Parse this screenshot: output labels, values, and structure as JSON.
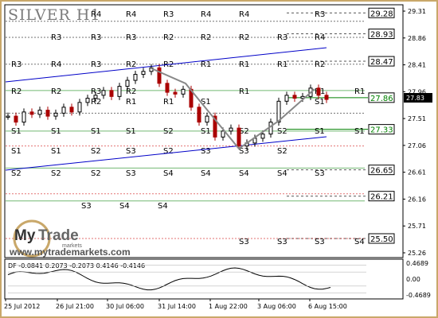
{
  "chart_data": {
    "type": "candlestick",
    "title": "SILVER H1",
    "yrange": [
      25.26,
      29.31
    ],
    "price_ticks": [
      "29.31",
      "28.86",
      "28.41",
      "27.96",
      "27.51",
      "27.06",
      "26.61",
      "26.16",
      "25.71",
      "25.26"
    ],
    "time_labels": [
      "25 Jul 2012",
      "26 Jul 21:00",
      "30 Jul 06:00",
      "31 Jul 14:00",
      "1 Aug 22:00",
      "3 Aug 06:00",
      "6 Aug 15:00"
    ],
    "current_price": "27.83",
    "levels": [
      {
        "label": "29.28",
        "value": 29.28,
        "color": "#000000"
      },
      {
        "label": "28.93",
        "value": 28.93,
        "color": "#000000"
      },
      {
        "label": "28.47",
        "value": 28.47,
        "color": "#000000"
      },
      {
        "label": "27.86",
        "value": 27.86,
        "color": "#008000"
      },
      {
        "label": "27.33",
        "value": 27.33,
        "color": "#008000"
      },
      {
        "label": "26.65",
        "value": 26.65,
        "color": "#000000"
      },
      {
        "label": "26.21",
        "value": 26.21,
        "color": "#000000"
      },
      {
        "label": "25.50",
        "value": 25.5,
        "color": "#000000"
      }
    ],
    "pivot_labels": [
      "R4",
      "R4",
      "R3",
      "R4",
      "R4",
      "R3",
      "R3",
      "R3",
      "R3",
      "R2",
      "R2",
      "R2",
      "R3",
      "R4",
      "R3",
      "R4",
      "R3",
      "R2",
      "R2",
      "R1",
      "R1",
      "R1",
      "R2",
      "R2",
      "R2",
      "R3",
      "R2",
      "R1",
      "R1",
      "R1",
      "R2",
      "R1",
      "R1",
      "S1",
      "S1",
      "S1",
      "S1",
      "S1",
      "S1",
      "S2",
      "S1",
      "S2",
      "S2",
      "S1",
      "S1",
      "S1",
      "S1",
      "S2",
      "S3",
      "S2",
      "S3",
      "S3",
      "S2",
      "S2",
      "S2",
      "S2",
      "S3",
      "S4",
      "S4",
      "S4",
      "S4",
      "S3",
      "S3",
      "S3",
      "S3",
      "S4",
      "S3",
      "S4",
      "S4"
    ],
    "indicator": {
      "name": "DF",
      "values": [
        "-0.0841",
        "0.2073",
        "-0.2073",
        "0.4146",
        "-0.4146"
      ],
      "ticks": [
        "0.4689",
        "0.00",
        "-0.4689"
      ],
      "yrange": [
        -0.4689,
        0.4689
      ]
    }
  },
  "watermark": {
    "brand_my": "My",
    "brand_trade": "Trade",
    "brand_sub": "markets",
    "url": "www.mytrademarkets.com"
  }
}
